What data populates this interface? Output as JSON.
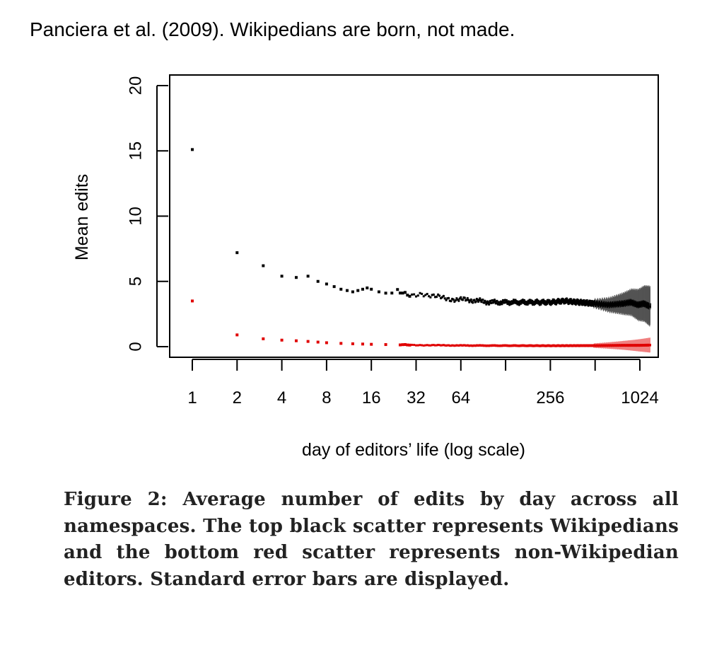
{
  "header": {
    "citation": "Panciera et al. (2009). Wikipedians are born, not made."
  },
  "caption": {
    "label": "Figure 2:",
    "text": "Average number of edits by day across all namespaces. The top black scatter represents Wikipedians and the bottom red scatter represents non-Wikipedian editors. Standard error bars are displayed."
  },
  "chart_data": {
    "type": "scatter",
    "xlabel": "day of editors’ life (log scale)",
    "ylabel": "Mean edits",
    "x_scale": "log2",
    "xlim": [
      1,
      1200
    ],
    "ylim": [
      0,
      20
    ],
    "x_ticks": [
      1,
      2,
      4,
      8,
      16,
      32,
      64,
      128,
      256,
      512,
      1024
    ],
    "x_tick_labels": [
      "1",
      "2",
      "4",
      "8",
      "16",
      "32",
      "64",
      "",
      "256",
      "",
      "1024"
    ],
    "y_ticks": [
      0,
      5,
      10,
      15,
      20
    ],
    "y_tick_labels": [
      "0",
      "5",
      "10",
      "15",
      "20"
    ],
    "grid": false,
    "legend": "none",
    "series": [
      {
        "color": "#000000",
        "error_bars": true,
        "points": [
          [
            1,
            15.1
          ],
          [
            2,
            7.2
          ],
          [
            3,
            6.2
          ],
          [
            4,
            5.4
          ],
          [
            5,
            5.3
          ],
          [
            6,
            5.4
          ],
          [
            7,
            5.0
          ],
          [
            8,
            4.8
          ],
          [
            9,
            4.6
          ],
          [
            10,
            4.4
          ],
          [
            11,
            4.3
          ],
          [
            12,
            4.2
          ],
          [
            13,
            4.3
          ],
          [
            14,
            4.4
          ],
          [
            15,
            4.5
          ],
          [
            16,
            4.4
          ],
          [
            18,
            4.2
          ],
          [
            20,
            4.1
          ],
          [
            22,
            4.1
          ],
          [
            24,
            4.3
          ],
          [
            26,
            4.0
          ],
          [
            30,
            3.9
          ],
          [
            35,
            4.1
          ],
          [
            40,
            3.9
          ],
          [
            45,
            3.8
          ],
          [
            50,
            3.7
          ],
          [
            60,
            3.6
          ],
          [
            70,
            3.6
          ],
          [
            85,
            3.5
          ],
          [
            100,
            3.4
          ],
          [
            128,
            3.4
          ],
          [
            160,
            3.4
          ],
          [
            200,
            3.4
          ],
          [
            256,
            3.4
          ],
          [
            320,
            3.5
          ],
          [
            400,
            3.4
          ],
          [
            512,
            3.3
          ],
          [
            640,
            3.2
          ],
          [
            800,
            3.3
          ],
          [
            900,
            3.4
          ],
          [
            1000,
            3.2
          ],
          [
            1100,
            3.3
          ],
          [
            1200,
            3.1
          ]
        ]
      },
      {
        "color": "#e00000",
        "error_bars": true,
        "points": [
          [
            1,
            3.5
          ],
          [
            2,
            0.9
          ],
          [
            3,
            0.6
          ],
          [
            4,
            0.5
          ],
          [
            5,
            0.45
          ],
          [
            6,
            0.4
          ],
          [
            7,
            0.35
          ],
          [
            8,
            0.3
          ],
          [
            10,
            0.25
          ],
          [
            12,
            0.22
          ],
          [
            14,
            0.2
          ],
          [
            16,
            0.18
          ],
          [
            20,
            0.16
          ],
          [
            25,
            0.14
          ],
          [
            32,
            0.12
          ],
          [
            40,
            0.11
          ],
          [
            64,
            0.09
          ],
          [
            100,
            0.08
          ],
          [
            256,
            0.07
          ],
          [
            512,
            0.08
          ],
          [
            800,
            0.1
          ],
          [
            1024,
            0.1
          ],
          [
            1200,
            0.12
          ]
        ]
      }
    ]
  }
}
